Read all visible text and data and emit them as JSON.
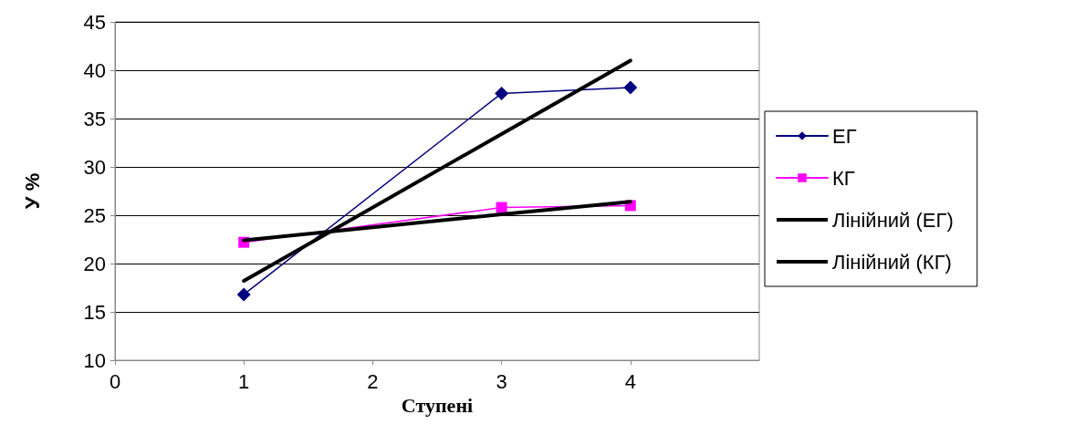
{
  "chart_data": {
    "type": "line",
    "xlabel": "Ступені",
    "ylabel": "У %",
    "x": [
      1,
      3,
      4
    ],
    "series": [
      {
        "name": "ЕГ",
        "color": "#000080",
        "marker": "diamond",
        "values": [
          16.8,
          37.6,
          38.2
        ]
      },
      {
        "name": "КГ",
        "color": "#ff00ff",
        "marker": "square",
        "values": [
          22.2,
          25.8,
          26.0
        ]
      },
      {
        "name": "Лінійний (ЕГ)",
        "color": "#000000",
        "marker": "none",
        "values": [
          18.2,
          33.4,
          41.0
        ]
      },
      {
        "name": "Лінійний (КГ)",
        "color": "#000000",
        "marker": "none",
        "values": [
          22.4,
          25.1,
          26.4
        ]
      }
    ],
    "xlim": [
      0,
      5
    ],
    "xticks": [
      0,
      1,
      2,
      3,
      4
    ],
    "ylim": [
      10,
      45
    ],
    "yticks": [
      10,
      15,
      20,
      25,
      30,
      35,
      40,
      45
    ],
    "grid": "y",
    "legend": "right"
  }
}
